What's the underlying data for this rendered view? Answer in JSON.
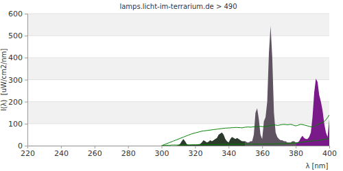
{
  "chart_data": {
    "type": "line",
    "title": "lamps.licht-im-terrarium.de > 490",
    "x_label": "λ [nm]",
    "y_label": "I(λ)  [uW/cm2/nm]",
    "xlim": [
      220,
      400
    ],
    "xticks": [
      220,
      240,
      260,
      280,
      300,
      320,
      340,
      360,
      380,
      400
    ],
    "ylim": [
      0,
      600
    ],
    "yticks": [
      0,
      100,
      200,
      300,
      400,
      500,
      600
    ],
    "grid": true,
    "x": [
      300,
      301,
      302,
      303,
      304,
      305,
      306,
      307,
      308,
      309,
      310,
      311,
      312,
      313,
      314,
      315,
      316,
      317,
      318,
      319,
      320,
      321,
      322,
      323,
      324,
      325,
      326,
      327,
      328,
      329,
      330,
      331,
      332,
      333,
      334,
      335,
      336,
      337,
      338,
      339,
      340,
      341,
      342,
      343,
      344,
      345,
      346,
      347,
      348,
      349,
      350,
      351,
      352,
      353,
      354,
      355,
      356,
      357,
      358,
      359,
      360,
      361,
      362,
      363,
      364,
      365,
      366,
      367,
      368,
      369,
      370,
      371,
      372,
      373,
      374,
      375,
      376,
      377,
      378,
      379,
      380,
      381,
      382,
      383,
      384,
      385,
      386,
      387,
      388,
      389,
      390,
      391,
      392,
      393,
      394,
      395,
      396,
      397,
      398,
      399,
      400
    ],
    "series": [
      {
        "type": "area",
        "color": "#2d3b2d",
        "values": [
          0,
          0,
          0,
          0,
          0,
          0,
          0,
          0,
          0,
          1,
          3,
          8,
          20,
          30,
          20,
          8,
          4,
          3,
          3,
          3,
          4,
          5,
          6,
          8,
          15,
          25,
          20,
          15,
          18,
          25,
          20,
          25,
          30,
          35,
          50,
          55,
          60,
          50,
          30,
          20,
          15,
          30,
          40,
          35,
          30,
          35,
          30,
          25,
          20,
          20,
          20,
          null,
          null,
          null,
          null,
          null,
          null,
          null,
          null,
          null,
          null,
          null,
          null,
          null,
          null,
          null,
          null,
          null,
          null,
          null,
          null,
          null,
          null,
          null,
          null,
          null,
          null,
          null,
          null,
          null,
          null,
          null,
          null,
          null,
          null,
          null,
          null,
          null,
          null,
          null,
          null,
          null,
          null,
          null,
          null,
          null,
          null,
          null,
          null,
          null,
          null
        ]
      },
      {
        "type": "area",
        "color": "#5f5361",
        "values": [
          null,
          null,
          null,
          null,
          null,
          null,
          null,
          null,
          null,
          null,
          null,
          null,
          null,
          null,
          null,
          null,
          null,
          null,
          null,
          null,
          null,
          null,
          null,
          null,
          null,
          null,
          null,
          null,
          null,
          null,
          null,
          null,
          null,
          null,
          null,
          null,
          null,
          null,
          null,
          null,
          null,
          null,
          null,
          null,
          null,
          null,
          null,
          null,
          null,
          null,
          20,
          15,
          15,
          20,
          20,
          50,
          150,
          170,
          120,
          50,
          30,
          110,
          130,
          200,
          420,
          545,
          400,
          150,
          60,
          40,
          30,
          25,
          25,
          20,
          20,
          15,
          15,
          15,
          20,
          20,
          15,
          null,
          null,
          null,
          null,
          null,
          null,
          null,
          null,
          null,
          null,
          null,
          null,
          null,
          null,
          null,
          null,
          null,
          null,
          null,
          null
        ]
      },
      {
        "type": "area",
        "color": "#7a1a8a",
        "values": [
          null,
          null,
          null,
          null,
          null,
          null,
          null,
          null,
          null,
          null,
          null,
          null,
          null,
          null,
          null,
          null,
          null,
          null,
          null,
          null,
          null,
          null,
          null,
          null,
          null,
          null,
          null,
          null,
          null,
          null,
          null,
          null,
          null,
          null,
          null,
          null,
          null,
          null,
          null,
          null,
          null,
          null,
          null,
          null,
          null,
          null,
          null,
          null,
          null,
          null,
          null,
          null,
          null,
          null,
          null,
          null,
          null,
          null,
          null,
          null,
          null,
          null,
          null,
          null,
          null,
          null,
          null,
          null,
          null,
          null,
          null,
          null,
          null,
          null,
          null,
          null,
          null,
          null,
          null,
          null,
          15,
          15,
          20,
          35,
          45,
          35,
          30,
          30,
          40,
          60,
          130,
          240,
          305,
          290,
          230,
          200,
          160,
          100,
          60,
          40,
          120
        ]
      },
      {
        "type": "line",
        "color": "#008000",
        "values": [
          0,
          3,
          6,
          9,
          12,
          15,
          18,
          21,
          24,
          27,
          30,
          33,
          36,
          39,
          42,
          45,
          48,
          51,
          54,
          56,
          58,
          60,
          62,
          64,
          66,
          67,
          68,
          69,
          70,
          71,
          72,
          73,
          74,
          75,
          76,
          77,
          78,
          79,
          80,
          80,
          81,
          81,
          82,
          82,
          83,
          83,
          82,
          82,
          81,
          83,
          84,
          85,
          85,
          84,
          85,
          86,
          86,
          85,
          87,
          88,
          87,
          86,
          88,
          89,
          90,
          92,
          93,
          95,
          94,
          92,
          93,
          95,
          96,
          97,
          96,
          95,
          96,
          97,
          95,
          92,
          90,
          92,
          95,
          97,
          96,
          94,
          92,
          90,
          88,
          86,
          85,
          88,
          92,
          96,
          100,
          102,
          105,
          110,
          118,
          128,
          140
        ]
      },
      {
        "type": "line",
        "color": "#008000",
        "values": [
          0,
          1,
          1,
          2,
          2,
          2,
          3,
          3,
          3,
          3,
          3,
          3,
          4,
          4,
          4,
          4,
          4,
          4,
          5,
          5,
          5,
          5,
          5,
          5,
          5,
          5,
          5,
          5,
          5,
          5,
          5,
          5,
          5,
          5,
          6,
          6,
          6,
          6,
          6,
          6,
          6,
          6,
          6,
          6,
          6,
          6,
          7,
          7,
          7,
          7,
          7,
          7,
          7,
          7,
          7,
          7,
          7,
          7,
          7,
          7,
          7,
          7,
          8,
          8,
          8,
          8,
          8,
          8,
          8,
          9,
          9,
          9,
          9,
          10,
          10,
          10,
          11,
          11,
          12,
          12,
          13,
          13,
          14,
          15,
          16,
          17,
          18,
          19,
          20,
          21,
          22,
          23,
          23,
          24,
          25,
          26,
          27,
          28,
          30,
          32,
          35
        ]
      }
    ]
  }
}
